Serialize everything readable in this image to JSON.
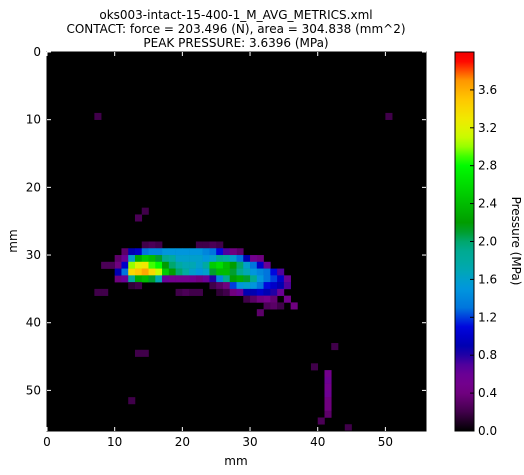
{
  "chart_data": {
    "type": "heatmap",
    "title_lines": [
      "oks003-intact-15-400-1_M_AVG_METRICS.xml",
      "CONTACT: force = 203.496 (N), area = 304.838 (mm^2)",
      "PEAK PRESSURE: 3.6396 (MPa)"
    ],
    "xlabel": "mm",
    "ylabel": "mm",
    "xlim": [
      0,
      56
    ],
    "ylim": [
      56,
      0
    ],
    "xticks": [
      0,
      10,
      20,
      30,
      40,
      50
    ],
    "yticks": [
      0,
      10,
      20,
      30,
      40,
      50
    ],
    "colorbar": {
      "label": "Pressure (MPa)",
      "range": [
        0.0,
        3.64
      ],
      "ticks": [
        "0.0",
        "0.4",
        "0.8",
        "1.2",
        "1.6",
        "2.0",
        "2.4",
        "2.8",
        "3.2",
        "3.6"
      ],
      "colormap": "nipy_spectral"
    },
    "grid": false,
    "rows": [
      {
        "y": 29,
        "cells": [
          [
            12,
            0.9
          ],
          [
            13,
            1.0
          ],
          [
            14,
            1.3
          ],
          [
            15,
            1.4
          ],
          [
            16,
            1.4
          ],
          [
            17,
            1.5
          ],
          [
            18,
            1.5
          ],
          [
            19,
            1.5
          ],
          [
            20,
            1.5
          ],
          [
            21,
            1.5
          ],
          [
            22,
            1.5
          ],
          [
            23,
            1.4
          ],
          [
            24,
            1.3
          ],
          [
            25,
            1.1
          ],
          [
            26,
            0.7
          ],
          [
            27,
            0.4
          ]
        ]
      },
      {
        "y": 30,
        "cells": [
          [
            11,
            0.6
          ],
          [
            12,
            1.6
          ],
          [
            13,
            2.3
          ],
          [
            14,
            2.5
          ],
          [
            15,
            2.4
          ],
          [
            16,
            2.1
          ],
          [
            17,
            1.9
          ],
          [
            18,
            1.8
          ],
          [
            19,
            1.6
          ],
          [
            20,
            1.6
          ],
          [
            21,
            1.6
          ],
          [
            22,
            1.6
          ],
          [
            23,
            1.5
          ],
          [
            24,
            1.6
          ],
          [
            25,
            1.9
          ],
          [
            26,
            1.8
          ],
          [
            27,
            1.6
          ],
          [
            28,
            1.3
          ],
          [
            29,
            0.9
          ],
          [
            30,
            0.5
          ]
        ]
      },
      {
        "y": 31,
        "cells": [
          [
            11,
            1.0
          ],
          [
            12,
            3.0
          ],
          [
            13,
            3.2
          ],
          [
            14,
            3.3
          ],
          [
            15,
            2.9
          ],
          [
            16,
            2.8
          ],
          [
            17,
            2.2
          ],
          [
            18,
            2.0
          ],
          [
            19,
            1.8
          ],
          [
            20,
            1.7
          ],
          [
            21,
            1.7
          ],
          [
            22,
            1.6
          ],
          [
            23,
            1.8
          ],
          [
            24,
            2.5
          ],
          [
            25,
            2.6
          ],
          [
            26,
            2.4
          ],
          [
            27,
            2.2
          ],
          [
            28,
            2.0
          ],
          [
            29,
            1.6
          ],
          [
            30,
            1.3
          ],
          [
            31,
            1.0
          ],
          [
            32,
            0.6
          ]
        ]
      },
      {
        "y": 32,
        "cells": [
          [
            10,
            0.9
          ],
          [
            11,
            1.3
          ],
          [
            12,
            3.4
          ],
          [
            13,
            3.5
          ],
          [
            14,
            3.64
          ],
          [
            15,
            3.4
          ],
          [
            16,
            3.1
          ],
          [
            17,
            2.5
          ],
          [
            18,
            2.2
          ],
          [
            19,
            2.0
          ],
          [
            20,
            1.8
          ],
          [
            21,
            1.6
          ],
          [
            22,
            1.5
          ],
          [
            23,
            1.6
          ],
          [
            24,
            2.1
          ],
          [
            25,
            2.4
          ],
          [
            26,
            2.4
          ],
          [
            27,
            2.1
          ],
          [
            28,
            1.9
          ],
          [
            29,
            1.7
          ],
          [
            30,
            1.5
          ],
          [
            31,
            1.4
          ],
          [
            32,
            1.3
          ],
          [
            33,
            1.1
          ],
          [
            34,
            0.7
          ]
        ]
      },
      {
        "y": 33,
        "cells": [
          [
            11,
            0.6
          ],
          [
            12,
            1.8
          ],
          [
            13,
            2.3
          ],
          [
            14,
            2.4
          ],
          [
            15,
            2.1
          ],
          [
            16,
            1.7
          ],
          [
            17,
            0.6
          ],
          [
            18,
            0.5
          ],
          [
            19,
            0.5
          ],
          [
            20,
            0.5
          ],
          [
            21,
            0.5
          ],
          [
            22,
            0.4
          ],
          [
            23,
            0.6
          ],
          [
            24,
            0.8
          ],
          [
            25,
            1.4
          ],
          [
            26,
            1.9
          ],
          [
            27,
            2.2
          ],
          [
            28,
            2.3
          ],
          [
            29,
            2.1
          ],
          [
            30,
            1.9
          ],
          [
            31,
            1.5
          ],
          [
            32,
            1.3
          ],
          [
            33,
            1.2
          ],
          [
            34,
            1.0
          ],
          [
            35,
            0.6
          ]
        ]
      },
      {
        "y": 34,
        "cells": [
          [
            12,
            0.15
          ],
          [
            13,
            0.2
          ],
          [
            24,
            0.2
          ],
          [
            25,
            0.3
          ],
          [
            26,
            0.4
          ],
          [
            27,
            1.2
          ],
          [
            28,
            1.5
          ],
          [
            29,
            1.6
          ],
          [
            30,
            1.5
          ],
          [
            31,
            1.3
          ],
          [
            32,
            1.1
          ],
          [
            33,
            1.0
          ],
          [
            34,
            0.9
          ],
          [
            35,
            0.7
          ]
        ]
      },
      {
        "y": 35,
        "cells": [
          [
            25,
            0.15
          ],
          [
            26,
            0.2
          ],
          [
            27,
            0.4
          ],
          [
            28,
            0.6
          ],
          [
            29,
            0.9
          ],
          [
            30,
            0.9
          ],
          [
            31,
            1.0
          ],
          [
            32,
            0.9
          ],
          [
            33,
            0.8
          ],
          [
            34,
            0.6
          ]
        ]
      },
      {
        "y": 36,
        "cells": [
          [
            29,
            0.2
          ],
          [
            30,
            0.3
          ],
          [
            31,
            0.4
          ],
          [
            32,
            0.45
          ],
          [
            33,
            0.35
          ]
        ]
      },
      {
        "y": 37,
        "cells": [
          [
            32,
            0.25
          ],
          [
            33,
            0.3
          ],
          [
            34,
            0.2
          ]
        ]
      }
    ],
    "faint_cells": [
      [
        7,
        9,
        0.05
      ],
      [
        50,
        9,
        0.05
      ],
      [
        13,
        24,
        0.06
      ],
      [
        14,
        23,
        0.05
      ],
      [
        14,
        28,
        0.05
      ],
      [
        15,
        28,
        0.06
      ],
      [
        16,
        28,
        0.05
      ],
      [
        22,
        28,
        0.05
      ],
      [
        23,
        28,
        0.05
      ],
      [
        24,
        28,
        0.06
      ],
      [
        25,
        28,
        0.05
      ],
      [
        11,
        29,
        0.08
      ],
      [
        28,
        29,
        0.08
      ],
      [
        10,
        30,
        0.08
      ],
      [
        31,
        30,
        0.1
      ],
      [
        10,
        31,
        0.1
      ],
      [
        8,
        31,
        0.06
      ],
      [
        9,
        31,
        0.06
      ],
      [
        10,
        33,
        0.1
      ],
      [
        33,
        33,
        0.1
      ],
      [
        7,
        35,
        0.05
      ],
      [
        8,
        35,
        0.05
      ],
      [
        19,
        35,
        0.05
      ],
      [
        20,
        35,
        0.06
      ],
      [
        21,
        35,
        0.05
      ],
      [
        22,
        35,
        0.05
      ],
      [
        35,
        36,
        0.12
      ],
      [
        36,
        37,
        0.1
      ],
      [
        31,
        38,
        0.08
      ],
      [
        13,
        44,
        0.05
      ],
      [
        14,
        44,
        0.05
      ],
      [
        42,
        43,
        0.05
      ],
      [
        39,
        46,
        0.05
      ],
      [
        41,
        47,
        0.12
      ],
      [
        41,
        48,
        0.14
      ],
      [
        41,
        49,
        0.12
      ],
      [
        41,
        50,
        0.14
      ],
      [
        41,
        51,
        0.1
      ],
      [
        41,
        52,
        0.1
      ],
      [
        41,
        53,
        0.08
      ],
      [
        40,
        54,
        0.06
      ],
      [
        12,
        51,
        0.05
      ],
      [
        44,
        55,
        0.05
      ]
    ]
  }
}
